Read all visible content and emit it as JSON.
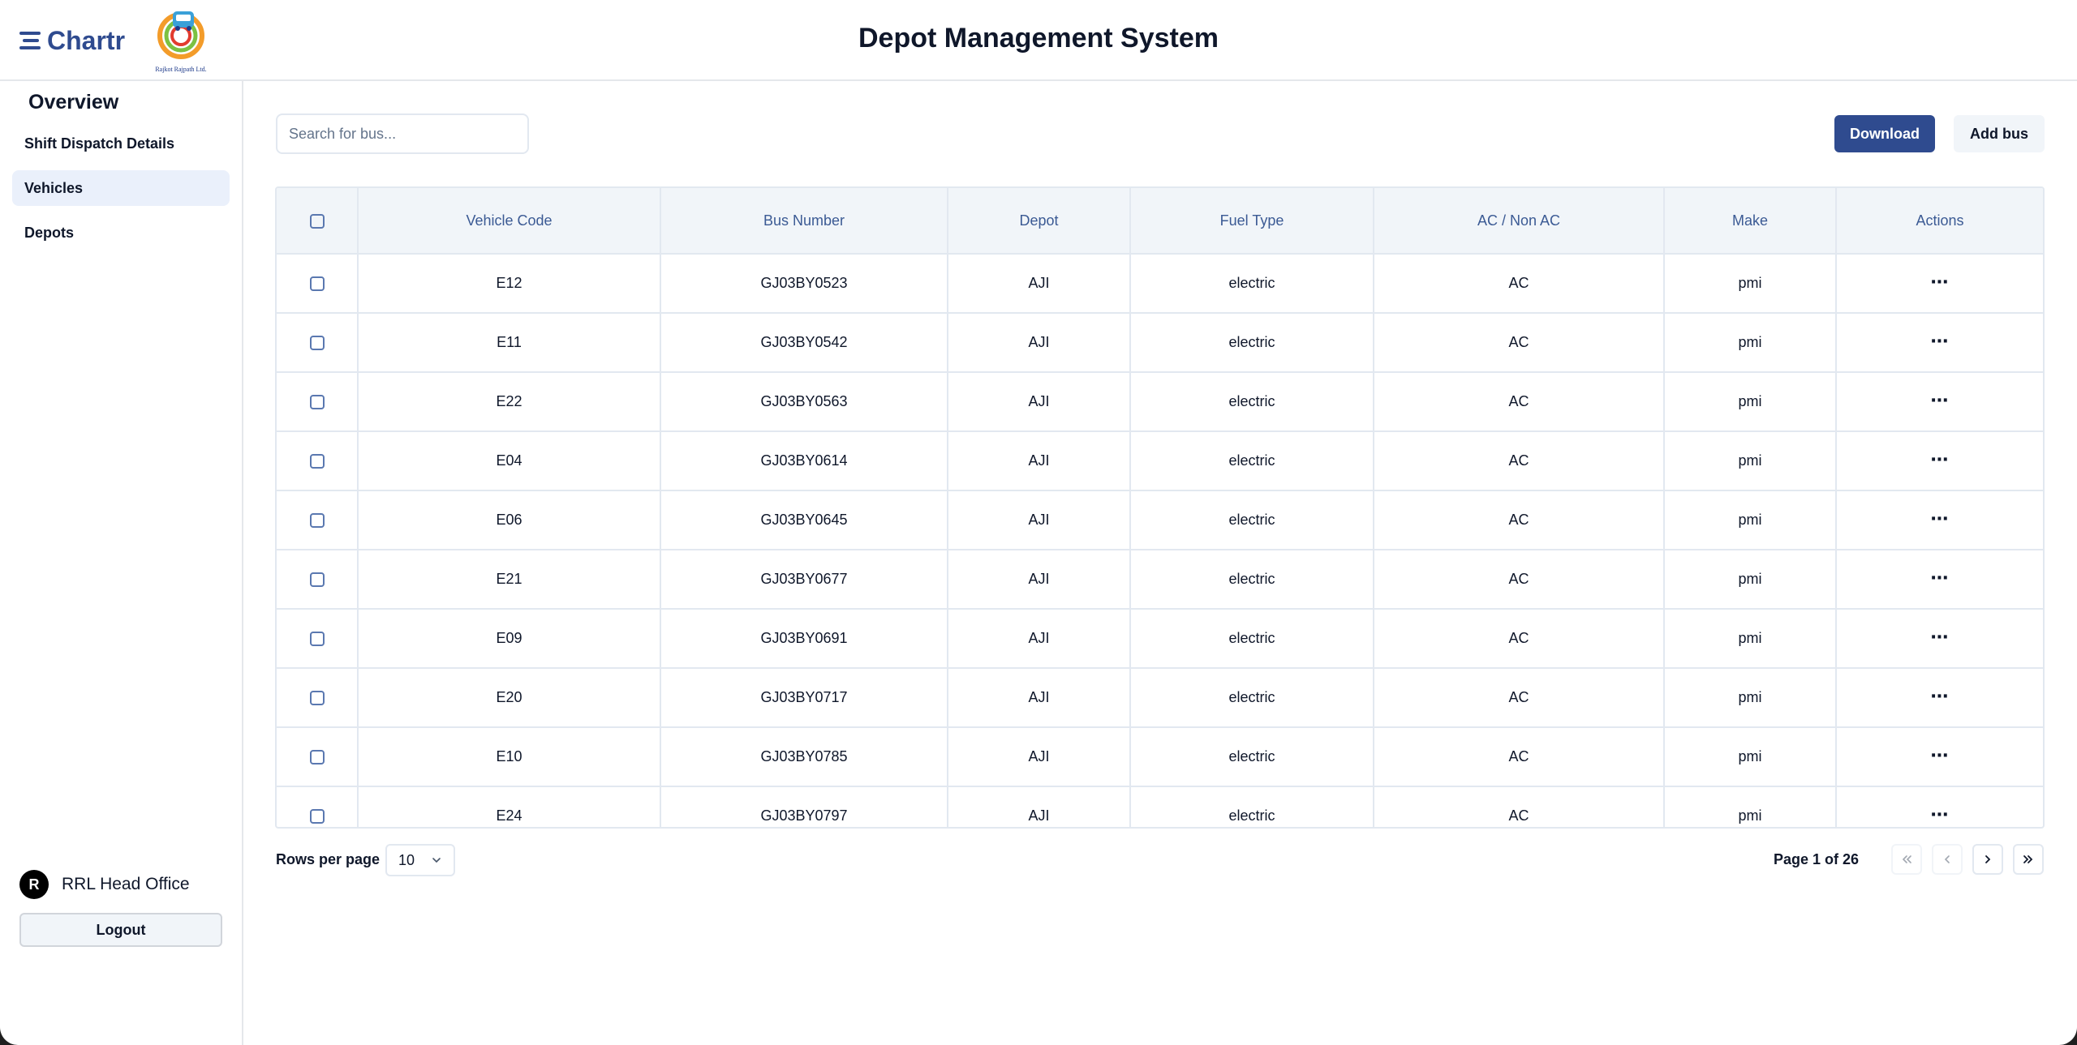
{
  "header": {
    "brand": "Chartr",
    "partner_caption": "Rajkot Rajpath Ltd.",
    "title": "Depot Management System"
  },
  "sidebar": {
    "heading": "Overview",
    "items": [
      {
        "label": "Shift Dispatch Details",
        "active": false
      },
      {
        "label": "Vehicles",
        "active": true
      },
      {
        "label": "Depots",
        "active": false
      }
    ],
    "user": {
      "initial": "R",
      "name": "RRL Head Office"
    },
    "logout_label": "Logout"
  },
  "toolbar": {
    "search_placeholder": "Search for bus...",
    "download_label": "Download",
    "add_label": "Add bus"
  },
  "table": {
    "columns": [
      "Vehicle Code",
      "Bus Number",
      "Depot",
      "Fuel Type",
      "AC / Non AC",
      "Make",
      "Actions"
    ],
    "rows": [
      {
        "code": "E12",
        "bus": "GJ03BY0523",
        "depot": "AJI",
        "fuel": "electric",
        "ac": "AC",
        "make": "pmi"
      },
      {
        "code": "E11",
        "bus": "GJ03BY0542",
        "depot": "AJI",
        "fuel": "electric",
        "ac": "AC",
        "make": "pmi"
      },
      {
        "code": "E22",
        "bus": "GJ03BY0563",
        "depot": "AJI",
        "fuel": "electric",
        "ac": "AC",
        "make": "pmi"
      },
      {
        "code": "E04",
        "bus": "GJ03BY0614",
        "depot": "AJI",
        "fuel": "electric",
        "ac": "AC",
        "make": "pmi"
      },
      {
        "code": "E06",
        "bus": "GJ03BY0645",
        "depot": "AJI",
        "fuel": "electric",
        "ac": "AC",
        "make": "pmi"
      },
      {
        "code": "E21",
        "bus": "GJ03BY0677",
        "depot": "AJI",
        "fuel": "electric",
        "ac": "AC",
        "make": "pmi"
      },
      {
        "code": "E09",
        "bus": "GJ03BY0691",
        "depot": "AJI",
        "fuel": "electric",
        "ac": "AC",
        "make": "pmi"
      },
      {
        "code": "E20",
        "bus": "GJ03BY0717",
        "depot": "AJI",
        "fuel": "electric",
        "ac": "AC",
        "make": "pmi"
      },
      {
        "code": "E10",
        "bus": "GJ03BY0785",
        "depot": "AJI",
        "fuel": "electric",
        "ac": "AC",
        "make": "pmi"
      },
      {
        "code": "E24",
        "bus": "GJ03BY0797",
        "depot": "AJI",
        "fuel": "electric",
        "ac": "AC",
        "make": "pmi"
      }
    ]
  },
  "pagination": {
    "rows_label": "Rows per page",
    "rows_value": "10",
    "page_info": "Page 1 of 26"
  },
  "colors": {
    "brand": "#2f4b8f",
    "header_text": "#3b5a94",
    "active_nav": "#eaf0fb"
  }
}
